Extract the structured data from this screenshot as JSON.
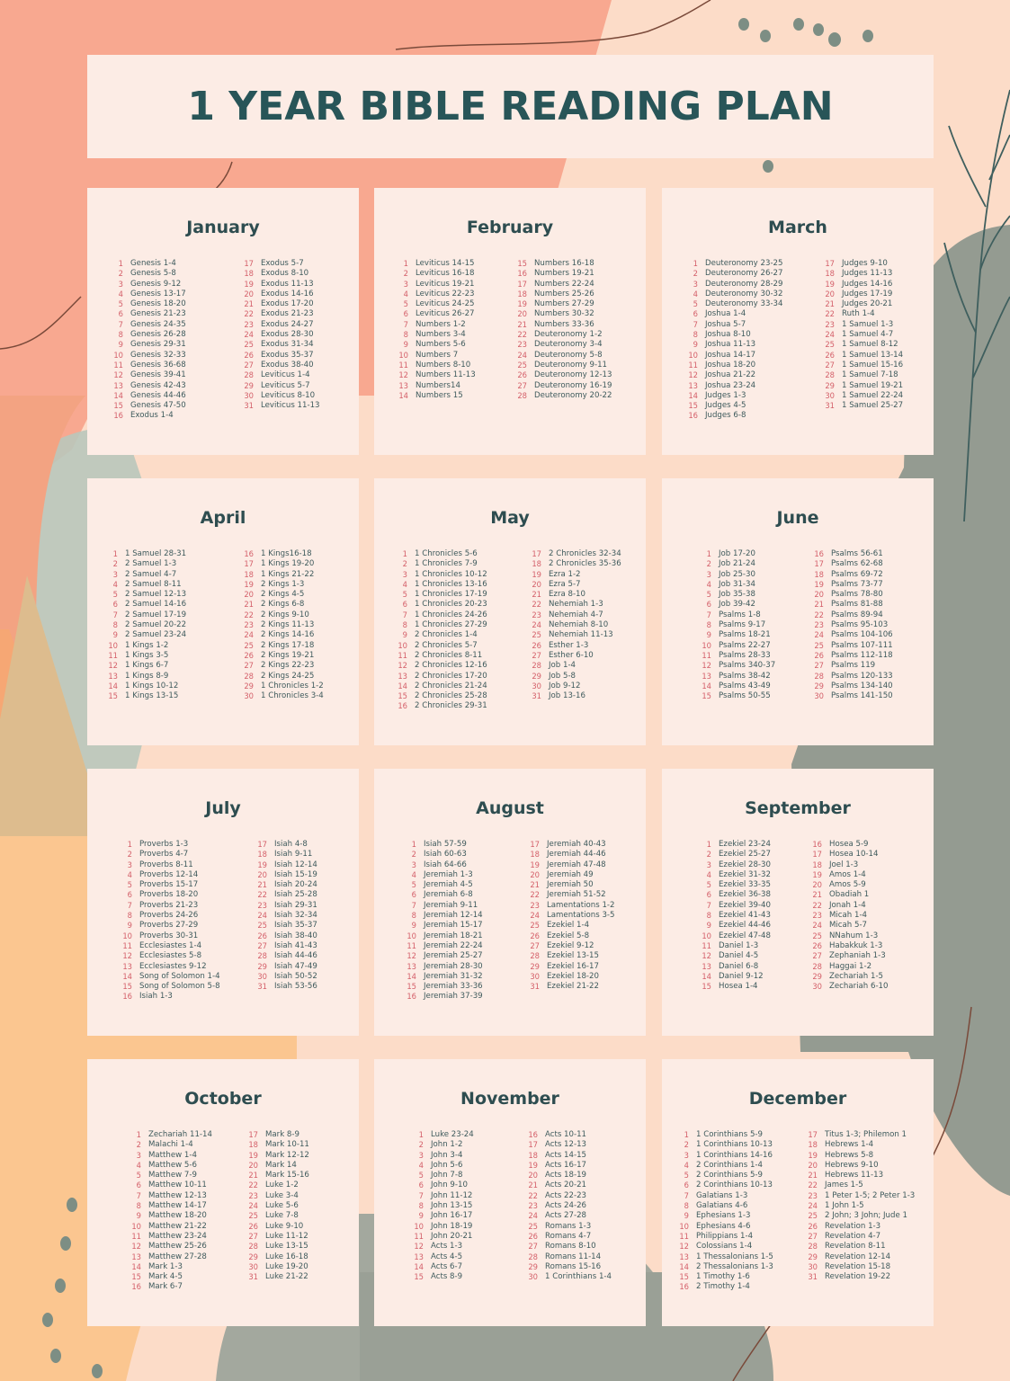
{
  "title": "1 YEAR BIBLE READING PLAN",
  "colors": {
    "title_text": "#285558",
    "month_title": "#2e4d50",
    "day_number": "#d4606a",
    "reading_text": "#3e5a5c",
    "card_bg": "#fcece5",
    "page_bg": "#fcdcc8",
    "coral_shape": "#f8a890",
    "sage_shape": "#949b91",
    "peach_shape": "#fbc690"
  },
  "months": [
    {
      "name": "January",
      "readings": [
        "Genesis 1-4",
        "Genesis 5-8",
        "Genesis 9-12",
        "Genesis 13-17",
        "Genesis 18-20",
        "Genesis 21-23",
        "Genesis 24-35",
        "Genesis 26-28",
        "Genesis 29-31",
        "Genesis 32-33",
        "Genesis 36-68",
        "Genesis 39-41",
        "Genesis 42-43",
        "Genesis 44-46",
        "Genesis 47-50",
        "Exodus 1-4",
        "Exodus 5-7",
        "Exodus 8-10",
        "Exodus 11-13",
        "Exodus 14-16",
        "Exodus 17-20",
        "Exodus 21-23",
        "Exodus 24-27",
        "Exodus 28-30",
        "Exodus 31-34",
        "Exodus 35-37",
        "Exodus 38-40",
        "Leviticus 1-4",
        "Leviticus 5-7",
        "Leviticus 8-10",
        "Leviticus 11-13"
      ],
      "split": 16
    },
    {
      "name": "February",
      "readings": [
        "Leviticus 14-15",
        "Leviticus 16-18",
        "Leviticus 19-21",
        "Leviticus 22-23",
        "Leviticus 24-25",
        "Leviticus 26-27",
        "Numbers 1-2",
        "Numbers 3-4",
        "Numbers 5-6",
        "Numbers 7",
        "Numbers 8-10",
        "Numbers 11-13",
        "Numbers14",
        "Numbers 15",
        "Numbers 16-18",
        "Numbers 19-21",
        "Numbers 22-24",
        "Numbers 25-26",
        "Numbers 27-29",
        "Numbers 30-32",
        "Numbers 33-36",
        "Deuteronomy 1-2",
        "Deuteronomy 3-4",
        "Deuteronomy 5-8",
        "Deuteronomy 9-11",
        "Deuteronomy 12-13",
        "Deuteronomy 16-19",
        "Deuteronomy 20-22"
      ],
      "split": 14
    },
    {
      "name": "March",
      "readings": [
        "Deuteronomy 23-25",
        "Deuteronomy 26-27",
        "Deuteronomy 28-29",
        "Deuteronomy 30-32",
        "Deuteronomy 33-34",
        "Joshua 1-4",
        "Joshua 5-7",
        "Joshua 8-10",
        "Joshua 11-13",
        "Joshua 14-17",
        "Joshua 18-20",
        "Joshua 21-22",
        "Joshua 23-24",
        "Judges 1-3",
        "Judges 4-5",
        "Judges 6-8",
        "Judges 9-10",
        "Judges 11-13",
        "Judges 14-16",
        "Judges 17-19",
        "Judges 20-21",
        "Ruth 1-4",
        "1 Samuel 1-3",
        "1 Samuel 4-7",
        "1 Samuel 8-12",
        "1 Samuel 13-14",
        "1 Samuel 15-16",
        "1 Samuel 7-18",
        "1 Samuel 19-21",
        "1 Samuel 22-24",
        "1 Samuel 25-27"
      ],
      "split": 16
    },
    {
      "name": "April",
      "readings": [
        "1 Samuel 28-31",
        "2 Samuel 1-3",
        "2 Samuel  4-7",
        "2 Samuel  8-11",
        "2 Samuel 12-13",
        "2 Samuel  14-16",
        "2 Samuel  17-19",
        "2 Samuel  20-22",
        "2 Samuel  23-24",
        "1 Kings 1-2",
        "1 Kings 3-5",
        "1 Kings 6-7",
        "1 Kings 8-9",
        "1 Kings 10-12",
        "1 Kings 13-15",
        "1 Kings16-18",
        "1 Kings 19-20",
        "1 Kings 21-22",
        "2 Kings 1-3",
        "2 Kings 4-5",
        "2 Kings 6-8",
        "2 Kings 9-10",
        "2 Kings 11-13",
        "2 Kings 14-16",
        "2 Kings 17-18",
        "2 Kings 19-21",
        "2 Kings 22-23",
        "2 Kings 24-25",
        "1 Chronicles 1-2",
        "1 Chronicles 3-4"
      ],
      "split": 15
    },
    {
      "name": "May",
      "readings": [
        "1 Chronicles 5-6",
        "1 Chronicles 7-9",
        "1 Chronicles 10-12",
        "1 Chronicles 13-16",
        "1 Chronicles 17-19",
        "1 Chronicles 20-23",
        "1 Chronicles 24-26",
        "1 Chronicles 27-29",
        "2 Chronicles 1-4",
        "2 Chronicles 5-7",
        "2 Chronicles 8-11",
        "2 Chronicles 12-16",
        "2 Chronicles 17-20",
        "2 Chronicles 21-24",
        "2 Chronicles 25-28",
        "2 Chronicles 29-31",
        "2 Chronicles 32-34",
        "2 Chronicles 35-36",
        "Ezra 1-2",
        "Ezra 5-7",
        "Ezra 8-10",
        "Nehemiah 1-3",
        "Nehemiah 4-7",
        "Nehemiah 8-10",
        "Nehemiah 11-13",
        "Esther 1-3",
        "Esther 6-10",
        "Job 1-4",
        "Job 5-8",
        "Job 9-12",
        "Job 13-16"
      ],
      "split": 16
    },
    {
      "name": "June",
      "readings": [
        "Job 17-20",
        "Job  21-24",
        "Job  25-30",
        "Job  31-34",
        "Job  35-38",
        "Job  39-42",
        "Psalms 1-8",
        "Psalms 9-17",
        "Psalms 18-21",
        "Psalms 22-27",
        "Psalms 28-33",
        "Psalms 340-37",
        "Psalms 38-42",
        "Psalms 43-49",
        "Psalms 50-55",
        "Psalms 56-61",
        "Psalms 62-68",
        "Psalms 69-72",
        "Psalms 73-77",
        "Psalms 78-80",
        "Psalms 81-88",
        "Psalms 89-94",
        "Psalms 95-103",
        "Psalms 104-106",
        "Psalms 107-111",
        "Psalms 112-118",
        "Psalms 119",
        "Psalms 120-133",
        "Psalms 134-140",
        "Psalms 141-150"
      ],
      "split": 15
    },
    {
      "name": "July",
      "readings": [
        "Proverbs 1-3",
        "Proverbs 4-7",
        "Proverbs 8-11",
        "Proverbs 12-14",
        "Proverbs 15-17",
        "Proverbs 18-20",
        "Proverbs 21-23",
        "Proverbs 24-26",
        "Proverbs 27-29",
        "Proverbs 30-31",
        "Ecclesiastes 1-4",
        "Ecclesiastes 5-8",
        "Ecclesiastes 9-12",
        "Song of Solomon 1-4",
        "Song of Solomon  5-8",
        "Isiah 1-3",
        "Isiah 4-8",
        "Isiah 9-11",
        "Isiah 12-14",
        "Isiah 15-19",
        "Isiah 20-24",
        "Isiah 25-28",
        "Isiah 29-31",
        "Isiah 32-34",
        "Isiah 35-37",
        "Isiah 38-40",
        "Isiah 41-43",
        "Isiah 44-46",
        "Isiah 47-49",
        "Isiah 50-52",
        "Isiah 53-56"
      ],
      "split": 16
    },
    {
      "name": "August",
      "readings": [
        "Isiah 57-59",
        "Isiah 60-63",
        "Isiah 64-66",
        "Jeremiah 1-3",
        "Jeremiah 4-5",
        "Jeremiah 6-8",
        "Jeremiah 9-11",
        "Jeremiah 12-14",
        "Jeremiah 15-17",
        "Jeremiah 18-21",
        "Jeremiah 22-24",
        "Jeremiah 25-27",
        "Jeremiah 28-30",
        "Jeremiah 31-32",
        "Jeremiah 33-36",
        "Jeremiah 37-39",
        "Jeremiah 40-43",
        "Jeremiah 44-46",
        "Jeremiah 47-48",
        "Jeremiah 49",
        "Jeremiah 50",
        "Jeremiah 51-52",
        "Lamentations 1-2",
        "Lamentations 3-5",
        "Ezekiel 1-4",
        "Ezekiel 5-8",
        "Ezekiel 9-12",
        "Ezekiel 13-15",
        "Ezekiel 16-17",
        "Ezekiel 18-20",
        "Ezekiel 21-22"
      ],
      "split": 16
    },
    {
      "name": "September",
      "readings": [
        "Ezekiel 23-24",
        "Ezekiel 25-27",
        "Ezekiel 28-30",
        "Ezekiel 31-32",
        "Ezekiel 33-35",
        "Ezekiel 36-38",
        "Ezekiel 39-40",
        "Ezekiel 41-43",
        "Ezekiel 44-46",
        "Ezekiel 47-48",
        "Daniel 1-3",
        "Daniel 4-5",
        "Daniel 6-8",
        "Daniel 9-12",
        "Hosea 1-4",
        "Hosea  5-9",
        "Hosea  10-14",
        "Joel 1-3",
        "Amos 1-4",
        "Amos 5-9",
        "Obadiah 1",
        "Jonah 1-4",
        "Micah 1-4",
        "Micah 5-7",
        "NNahum 1-3",
        "Habakkuk 1-3",
        "Zephaniah 1-3",
        "Haggai 1-2",
        "Zechariah 1-5",
        "Zechariah 6-10"
      ],
      "split": 15
    },
    {
      "name": "October",
      "readings": [
        "Zechariah 11-14",
        "Malachi 1-4",
        "Matthew 1-4",
        "Matthew 5-6",
        "Matthew 7-9",
        "Matthew 10-11",
        "Matthew 12-13",
        "Matthew 14-17",
        "Matthew 18-20",
        "Matthew 21-22",
        "Matthew 23-24",
        "Matthew 25-26",
        "Matthew 27-28",
        "Mark 1-3",
        "Mark 4-5",
        "Mark  6-7",
        "Mark  8-9",
        "Mark  10-11",
        "Mark  12-12",
        "Mark  14",
        "Mark  15-16",
        "Luke 1-2",
        "Luke 3-4",
        "Luke 5-6",
        "Luke 7-8",
        "Luke 9-10",
        "Luke 11-12",
        "Luke 13-15",
        "Luke 16-18",
        "Luke 19-20",
        "Luke 21-22"
      ],
      "split": 16
    },
    {
      "name": "November",
      "readings": [
        "Luke 23-24",
        "John 1-2",
        "John 3-4",
        "John 5-6",
        "John 7-8",
        "John 9-10",
        "John 11-12",
        "John 13-15",
        "John 16-17",
        "John 18-19",
        "John 20-21",
        "Acts 1-3",
        "Acts 4-5",
        "Acts 6-7",
        "Acts 8-9",
        "Acts 10-11",
        "Acts 12-13",
        "Acts 14-15",
        "Acts 16-17",
        "Acts 18-19",
        "Acts 20-21",
        "Acts 22-23",
        "Acts 24-26",
        "Acts 27-28",
        "Romans 1-3",
        "Romans 4-7",
        "Romans 8-10",
        "Romans 11-14",
        "Romans 15-16",
        "1 Corinthians 1-4"
      ],
      "split": 15
    },
    {
      "name": "December",
      "readings": [
        "1 Corinthians 5-9",
        "1 Corinthians 10-13",
        "1 Corinthians 14-16",
        "2 Corinthians 1-4",
        "2 Corinthians 5-9",
        "2 Corinthians 10-13",
        "Galatians 1-3",
        "Galatians 4-6",
        "Ephesians 1-3",
        "Ephesians 4-6",
        "Philippians 1-4",
        "Colossians 1-4",
        "1 Thessalonians 1-5",
        "2 Thessalonians 1-3",
        "1 Timothy 1-6",
        "2 Timothy 1-4",
        "Titus 1-3; Philemon 1",
        "Hebrews 1-4",
        "Hebrews 5-8",
        "Hebrews 9-10",
        "Hebrews 11-13",
        "James 1-5",
        "1 Peter 1-5; 2 Peter 1-3",
        "1 John 1-5",
        "2 John; 3 John; Jude 1",
        "Revelation 1-3",
        "Revelation 4-7",
        "Revelation 8-11",
        "Revelation 12-14",
        "Revelation 15-18",
        "Revelation 19-22"
      ],
      "split": 16
    }
  ]
}
